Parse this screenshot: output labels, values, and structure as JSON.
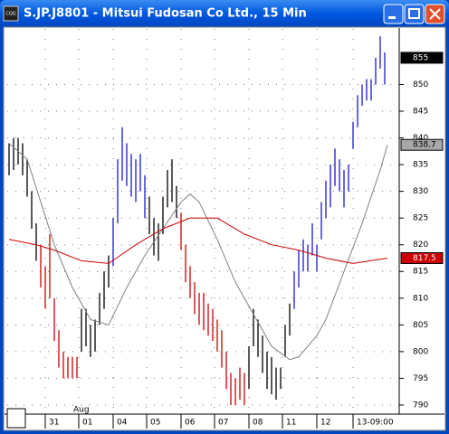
{
  "window": {
    "title": "S.JP.J8801 - Mitsui Fudosan Co Ltd., 15 Min",
    "icon": "CQG"
  },
  "chart_data": {
    "type": "hilo",
    "xlim": [
      -0.4,
      86
    ],
    "ylim": [
      788.3,
      860.4
    ],
    "yticks": [
      790,
      795,
      800,
      805,
      810,
      815,
      820,
      825,
      830,
      835,
      840,
      845,
      850
    ],
    "xticks": [
      {
        "value": 8,
        "label": "31"
      },
      {
        "value": 15.4,
        "label": "01"
      },
      {
        "value": 23,
        "label": "04"
      },
      {
        "value": 30.4,
        "label": "05"
      },
      {
        "value": 38,
        "label": "06"
      },
      {
        "value": 45.4,
        "label": "07"
      },
      {
        "value": 53,
        "label": "08"
      },
      {
        "value": 60.4,
        "label": "11"
      },
      {
        "value": 68,
        "label": "12"
      },
      {
        "value": 76,
        "label": "13-09:00"
      }
    ],
    "annotations": [
      {
        "text": "Aug",
        "x": 15.4
      }
    ],
    "grid": true,
    "series": [
      {
        "color": "#000000",
        "x": [
          0,
          1,
          2,
          3,
          4,
          5,
          6,
          16,
          17,
          18,
          19,
          20,
          21,
          22,
          31,
          32,
          33,
          34,
          35,
          36,
          37,
          53,
          54,
          55,
          56,
          57,
          58,
          59,
          60,
          61,
          62
        ],
        "high": [
          839,
          840,
          840,
          839,
          836,
          830,
          824,
          808,
          808,
          805,
          806,
          811,
          815,
          818,
          829,
          825,
          824,
          829,
          834,
          836,
          831,
          801,
          808,
          806,
          803,
          800,
          799,
          797,
          797,
          805,
          809
        ],
        "low": [
          833,
          834,
          835,
          833,
          829,
          823,
          817,
          800,
          801,
          799,
          800,
          805,
          808,
          812,
          822,
          818,
          817,
          822,
          827,
          828,
          825,
          793,
          801,
          799,
          796,
          793,
          792,
          791,
          793,
          799,
          803
        ]
      },
      {
        "color": "#cc0000",
        "x": [
          7,
          8,
          9,
          10,
          11,
          12,
          13,
          14,
          15,
          38,
          39,
          40,
          41,
          42,
          43,
          44,
          45,
          46,
          47,
          48,
          49,
          50,
          51,
          52
        ],
        "high": [
          820,
          816,
          822,
          810,
          804,
          800,
          799,
          799,
          799,
          826,
          820,
          816,
          813,
          811,
          811,
          809,
          808,
          806,
          804,
          800,
          796,
          795,
          797,
          796
        ],
        "low": [
          812,
          808,
          810,
          802,
          797,
          795,
          795,
          795,
          795,
          819,
          813,
          810,
          807,
          805,
          804,
          803,
          802,
          800,
          797,
          793,
          790,
          790,
          791,
          790
        ]
      },
      {
        "color": "#1a1acc",
        "x": [
          23,
          24,
          25,
          26,
          27,
          28,
          29,
          30,
          63,
          64,
          65,
          66,
          67,
          68,
          69,
          70,
          71,
          72,
          73,
          74,
          75,
          76,
          77,
          78,
          79,
          80,
          81,
          82,
          83
        ],
        "high": [
          825,
          836,
          842,
          839,
          837,
          836,
          837,
          833,
          815,
          819,
          821,
          820,
          824,
          820,
          828,
          832,
          835,
          838,
          836,
          834,
          835,
          843,
          848,
          850,
          851,
          851,
          855,
          859,
          856
        ],
        "low": [
          816,
          824,
          832,
          831,
          829,
          828,
          830,
          825,
          808,
          812,
          815,
          815,
          818,
          815,
          821,
          825,
          827,
          831,
          830,
          827,
          830,
          838,
          842,
          846,
          847,
          847,
          850,
          853,
          850
        ]
      }
    ],
    "lines": [
      {
        "color": "#808080",
        "x": [
          0,
          4,
          10,
          14,
          18,
          22,
          26,
          30,
          34,
          38,
          40,
          42,
          46,
          50,
          54,
          58,
          62,
          64,
          68,
          70,
          74,
          78,
          82,
          83.6
        ],
        "values": [
          839,
          836,
          820,
          812,
          806,
          805,
          812,
          818,
          823,
          828,
          829.5,
          828,
          821,
          813,
          807,
          801,
          798.5,
          799,
          803,
          806,
          815,
          824,
          834,
          838.7
        ]
      },
      {
        "color": "#cc0000",
        "x": [
          0,
          6,
          10,
          16,
          22,
          28,
          34,
          40,
          46,
          52,
          58,
          64,
          70,
          76,
          83.6
        ],
        "values": [
          821,
          820,
          819,
          817,
          816.5,
          820,
          823,
          825,
          825,
          822,
          820,
          819,
          817.5,
          816.5,
          817.5
        ]
      }
    ],
    "price_markers": [
      {
        "value": 855,
        "color": "#000000",
        "text_color": "#ffffff"
      },
      {
        "value": 838.7,
        "color": "#a8a8a8",
        "text_color": "#000000"
      },
      {
        "value": 817.5,
        "color": "#cc0000",
        "text_color": "#ffffff"
      }
    ]
  }
}
